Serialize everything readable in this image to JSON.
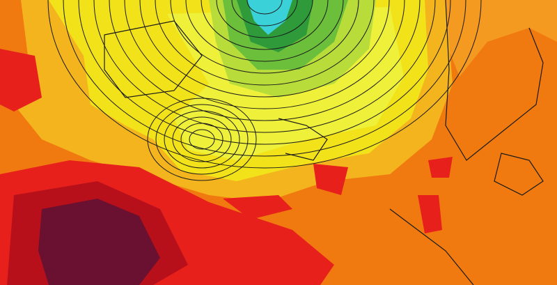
{
  "map": {
    "colors": {
      "background_orange": "#f07a10",
      "light_orange": "#f59a20",
      "yellow_orange": "#f4b41e",
      "yellow": "#f2e21a",
      "pale_yellow": "#eef03a",
      "light_green": "#b8dc3a",
      "green": "#6cbf3a",
      "dark_green": "#2e9a3a",
      "cyan": "#3ad2d8",
      "red": "#e8201c",
      "dark_red": "#b8101a",
      "maroon": "#6a1030",
      "contour": "#1a1a1a"
    }
  }
}
